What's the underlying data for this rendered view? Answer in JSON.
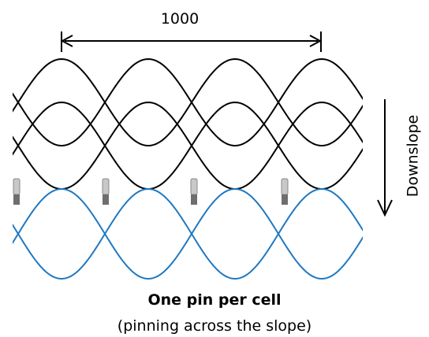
{
  "dimension": {
    "label": "1000"
  },
  "arrow": {
    "label": "Downslope"
  },
  "caption": {
    "title": "One pin per cell",
    "subtitle": "(pinning across the slope)"
  }
}
